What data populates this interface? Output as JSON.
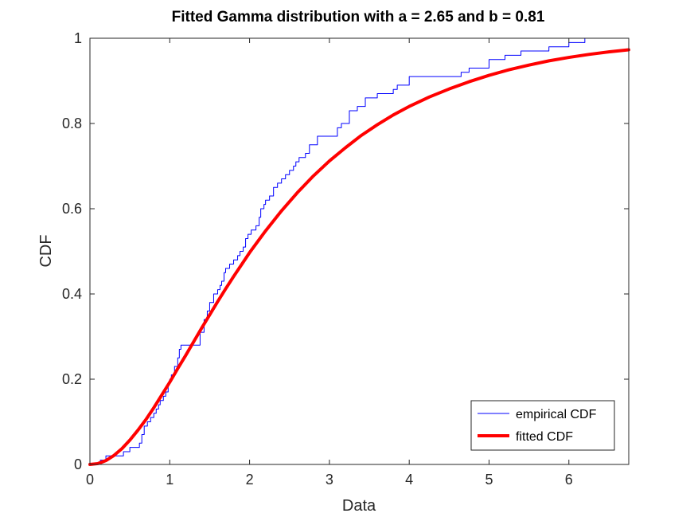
{
  "chart_data": {
    "type": "line",
    "title": "Fitted Gamma distribution with a = 2.65 and b = 0.81",
    "xlabel": "Data",
    "ylabel": "CDF",
    "xlim": [
      0,
      6.75
    ],
    "ylim": [
      0,
      1
    ],
    "xticks": [
      0,
      1,
      2,
      3,
      4,
      5,
      6
    ],
    "xtick_labels": [
      "0",
      "1",
      "2",
      "3",
      "4",
      "5",
      "6"
    ],
    "yticks": [
      0,
      0.2,
      0.4,
      0.6,
      0.8,
      1
    ],
    "ytick_labels": [
      "0",
      "0.2",
      "0.4",
      "0.6",
      "0.8",
      "1"
    ],
    "grid": false,
    "legend_position": "bottom-right",
    "gamma_params": {
      "a": 2.65,
      "b": 0.81
    },
    "series": [
      {
        "name": "empirical CDF",
        "style": "stairs",
        "color": "#0000ff",
        "x": [
          0,
          0.13,
          0.2,
          0.3,
          0.42,
          0.5,
          0.55,
          0.62,
          0.65,
          0.68,
          0.72,
          0.76,
          0.8,
          0.83,
          0.86,
          0.88,
          0.92,
          0.95,
          0.98,
          1.0,
          1.02,
          1.06,
          1.1,
          1.12,
          1.14,
          1.16,
          1.2,
          1.38,
          1.43,
          1.47,
          1.5,
          1.55,
          1.6,
          1.63,
          1.65,
          1.68,
          1.7,
          1.75,
          1.8,
          1.85,
          1.88,
          1.92,
          1.95,
          1.98,
          2.02,
          2.08,
          2.12,
          2.14,
          2.18,
          2.2,
          2.25,
          2.3,
          2.35,
          2.4,
          2.45,
          2.5,
          2.55,
          2.58,
          2.62,
          2.7,
          2.75,
          2.85,
          3.1,
          3.15,
          3.25,
          3.35,
          3.45,
          3.6,
          3.8,
          3.85,
          4.0,
          4.6,
          4.65,
          4.75,
          5.0,
          5.2,
          5.4,
          5.75,
          6.0,
          6.2,
          6.75
        ],
        "y": [
          0,
          0.01,
          0.02,
          0.02,
          0.03,
          0.04,
          0.04,
          0.05,
          0.07,
          0.09,
          0.1,
          0.11,
          0.12,
          0.13,
          0.14,
          0.15,
          0.16,
          0.17,
          0.19,
          0.2,
          0.21,
          0.23,
          0.25,
          0.27,
          0.28,
          0.28,
          0.28,
          0.31,
          0.34,
          0.36,
          0.38,
          0.4,
          0.41,
          0.42,
          0.43,
          0.45,
          0.46,
          0.47,
          0.48,
          0.49,
          0.5,
          0.51,
          0.53,
          0.54,
          0.55,
          0.56,
          0.58,
          0.6,
          0.61,
          0.62,
          0.63,
          0.65,
          0.66,
          0.67,
          0.68,
          0.69,
          0.7,
          0.71,
          0.72,
          0.73,
          0.75,
          0.77,
          0.79,
          0.8,
          0.83,
          0.84,
          0.86,
          0.87,
          0.88,
          0.89,
          0.91,
          0.91,
          0.92,
          0.93,
          0.95,
          0.96,
          0.97,
          0.98,
          0.99,
          1.0,
          1.0
        ]
      },
      {
        "name": "fitted CDF",
        "style": "smooth",
        "color": "#ff0000",
        "x": [
          0,
          0.1,
          0.2,
          0.3,
          0.4,
          0.5,
          0.6,
          0.7,
          0.8,
          0.9,
          1.0,
          1.1,
          1.2,
          1.3,
          1.4,
          1.5,
          1.6,
          1.7,
          1.8,
          1.9,
          2.0,
          2.2,
          2.4,
          2.6,
          2.8,
          3.0,
          3.2,
          3.4,
          3.6,
          3.8,
          4.0,
          4.25,
          4.5,
          4.75,
          5.0,
          5.25,
          5.5,
          5.75,
          6.0,
          6.25,
          6.5,
          6.75
        ],
        "y": [
          0,
          0.002,
          0.009,
          0.021,
          0.037,
          0.057,
          0.08,
          0.105,
          0.133,
          0.163,
          0.193,
          0.225,
          0.256,
          0.288,
          0.32,
          0.351,
          0.382,
          0.412,
          0.441,
          0.469,
          0.497,
          0.548,
          0.595,
          0.638,
          0.677,
          0.712,
          0.743,
          0.772,
          0.797,
          0.82,
          0.84,
          0.862,
          0.881,
          0.898,
          0.913,
          0.926,
          0.937,
          0.947,
          0.955,
          0.962,
          0.968,
          0.973
        ]
      }
    ]
  }
}
